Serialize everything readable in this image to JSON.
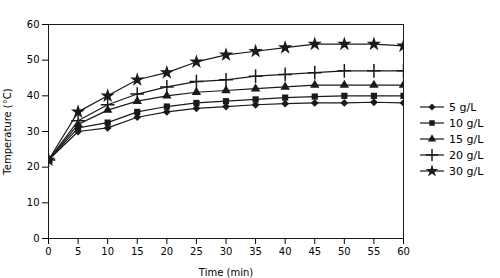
{
  "chart_data": {
    "type": "line",
    "x": [
      0,
      5,
      10,
      15,
      20,
      25,
      30,
      35,
      40,
      45,
      50,
      55,
      60
    ],
    "series": [
      {
        "name": "5 g/L",
        "marker": "diamond",
        "values": [
          22.0,
          30.0,
          31.0,
          34.0,
          35.5,
          36.5,
          37.0,
          37.5,
          37.8,
          38.0,
          38.0,
          38.2,
          38.0
        ]
      },
      {
        "name": "10 g/L",
        "marker": "square",
        "values": [
          22.0,
          31.0,
          32.5,
          35.5,
          37.0,
          38.0,
          38.5,
          39.0,
          39.5,
          39.8,
          40.0,
          40.0,
          40.0
        ]
      },
      {
        "name": "15 g/L",
        "marker": "triangle",
        "values": [
          22.0,
          32.0,
          36.0,
          38.5,
          40.0,
          41.0,
          41.5,
          42.0,
          42.5,
          43.0,
          43.0,
          43.0,
          43.0
        ]
      },
      {
        "name": "20 g/L",
        "marker": "plus",
        "values": [
          22.0,
          33.0,
          37.5,
          40.5,
          42.5,
          44.0,
          44.5,
          45.5,
          46.0,
          46.5,
          47.0,
          47.0,
          47.0
        ]
      },
      {
        "name": "30 g/L",
        "marker": "star",
        "values": [
          22.0,
          35.5,
          40.0,
          44.5,
          46.5,
          49.5,
          51.5,
          52.5,
          53.5,
          54.5,
          54.5,
          54.5,
          54.0
        ]
      }
    ],
    "color": "#1a1a1a",
    "xlabel": "Time (min)",
    "ylabel": "Temperature (°C)",
    "xlim": [
      0,
      60
    ],
    "ylim": [
      0,
      60
    ],
    "xticks": [
      0,
      5,
      10,
      15,
      20,
      25,
      30,
      35,
      40,
      45,
      50,
      55,
      60
    ],
    "yticks": [
      0,
      10,
      20,
      30,
      40,
      50,
      60
    ],
    "grid": false,
    "legend": "right"
  }
}
